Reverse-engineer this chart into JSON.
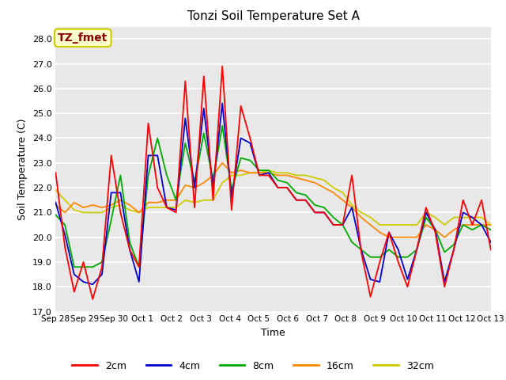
{
  "title": "Tonzi Soil Temperature Set A",
  "xlabel": "Time",
  "ylabel": "Soil Temperature (C)",
  "ylim": [
    17.0,
    28.5
  ],
  "yticks": [
    17.0,
    18.0,
    19.0,
    20.0,
    21.0,
    22.0,
    23.0,
    24.0,
    25.0,
    26.0,
    27.0,
    28.0
  ],
  "xtick_labels": [
    "Sep 28",
    "Sep 29",
    "Sep 30",
    "Oct 1",
    "Oct 2",
    "Oct 3",
    "Oct 4",
    "Oct 5",
    "Oct 6",
    "Oct 7",
    "Oct 8",
    "Oct 9",
    "Oct 10",
    "Oct 11",
    "Oct 12",
    "Oct 13"
  ],
  "annotation_text": "TZ_fmet",
  "annotation_color": "#8b0000",
  "annotation_bg": "#ffffcc",
  "annotation_border": "#cccc00",
  "colors": {
    "2cm": "#ff0000",
    "4cm": "#0000cc",
    "8cm": "#00aa00",
    "16cm": "#ff8800",
    "32cm": "#cccc00"
  },
  "fig_bg_color": "#ffffff",
  "plot_bg_color": "#e8e8e8",
  "grid_color": "#ffffff",
  "data": {
    "2cm": [
      22.6,
      19.6,
      17.8,
      19.0,
      17.5,
      18.8,
      23.3,
      21.0,
      19.5,
      18.8,
      24.6,
      22.0,
      21.2,
      21.0,
      26.3,
      21.2,
      26.5,
      21.5,
      26.9,
      21.1,
      25.3,
      24.0,
      22.5,
      22.5,
      22.0,
      22.0,
      21.5,
      21.5,
      21.0,
      21.0,
      20.5,
      20.5,
      22.5,
      19.4,
      17.6,
      19.0,
      20.2,
      19.0,
      18.0,
      19.5,
      21.2,
      20.2,
      18.0,
      19.5,
      21.5,
      20.5,
      21.5,
      19.5
    ],
    "4cm": [
      21.4,
      20.1,
      18.5,
      18.2,
      18.1,
      18.5,
      21.8,
      21.8,
      19.5,
      18.2,
      23.3,
      23.3,
      21.2,
      21.1,
      24.8,
      22.0,
      25.2,
      22.0,
      25.4,
      21.6,
      24.0,
      23.8,
      22.5,
      22.6,
      22.0,
      22.0,
      21.5,
      21.5,
      21.0,
      21.0,
      20.5,
      20.5,
      21.2,
      19.5,
      18.3,
      18.2,
      20.2,
      19.5,
      18.3,
      19.5,
      21.0,
      20.3,
      18.2,
      19.5,
      21.0,
      20.8,
      20.5,
      19.8
    ],
    "8cm": [
      20.9,
      20.5,
      18.8,
      18.8,
      18.8,
      19.0,
      20.7,
      22.5,
      19.8,
      18.8,
      22.5,
      24.0,
      22.5,
      21.5,
      23.8,
      22.2,
      24.2,
      22.3,
      24.5,
      21.9,
      23.2,
      23.1,
      22.7,
      22.7,
      22.3,
      22.2,
      21.8,
      21.7,
      21.3,
      21.2,
      20.8,
      20.5,
      19.8,
      19.5,
      19.2,
      19.2,
      19.5,
      19.2,
      19.2,
      19.5,
      20.8,
      20.3,
      19.4,
      19.7,
      20.5,
      20.3,
      20.5,
      20.3
    ],
    "16cm": [
      21.3,
      21.0,
      21.4,
      21.2,
      21.3,
      21.2,
      21.3,
      21.5,
      21.3,
      21.0,
      21.4,
      21.4,
      21.5,
      21.5,
      22.1,
      22.0,
      22.2,
      22.5,
      23.0,
      22.6,
      22.7,
      22.6,
      22.6,
      22.6,
      22.5,
      22.5,
      22.4,
      22.3,
      22.2,
      22.0,
      21.8,
      21.5,
      21.2,
      20.8,
      20.5,
      20.2,
      20.0,
      20.0,
      20.0,
      20.0,
      20.5,
      20.3,
      20.0,
      20.3,
      20.5,
      20.5,
      20.5,
      20.5
    ],
    "32cm": [
      21.9,
      21.5,
      21.1,
      21.0,
      21.0,
      21.0,
      21.2,
      21.3,
      21.1,
      21.0,
      21.2,
      21.2,
      21.2,
      21.2,
      21.5,
      21.4,
      21.5,
      21.5,
      22.2,
      22.5,
      22.5,
      22.6,
      22.6,
      22.7,
      22.6,
      22.6,
      22.5,
      22.5,
      22.4,
      22.3,
      22.0,
      21.8,
      21.3,
      21.0,
      20.8,
      20.5,
      20.5,
      20.5,
      20.5,
      20.5,
      21.0,
      20.8,
      20.5,
      20.8,
      20.8,
      20.8,
      20.8,
      20.5
    ]
  }
}
